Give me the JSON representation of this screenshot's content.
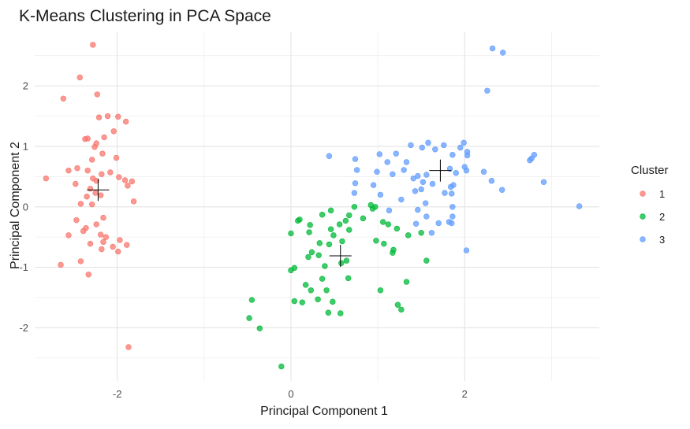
{
  "chart_data": {
    "type": "scatter",
    "title": "K-Means Clustering in PCA Space",
    "xlabel": "Principal Component 1",
    "ylabel": "Principal Component 2",
    "xlim": [
      -2.95,
      3.55
    ],
    "ylim": [
      -2.88,
      2.9
    ],
    "x_ticks": [
      -2,
      0,
      2
    ],
    "y_ticks": [
      -2,
      -1,
      0,
      1,
      2
    ],
    "grid": true,
    "legend": {
      "title": "Cluster",
      "position": "right"
    },
    "series": [
      {
        "name": "1",
        "color": "#F8766D",
        "points": [
          [
            -2.28,
            2.68
          ],
          [
            -2.43,
            2.14
          ],
          [
            -2.23,
            1.86
          ],
          [
            -2.62,
            1.79
          ],
          [
            -2.11,
            1.5
          ],
          [
            -1.99,
            1.49
          ],
          [
            -2.21,
            1.48
          ],
          [
            -1.9,
            1.41
          ],
          [
            -2.04,
            1.25
          ],
          [
            -2.15,
            1.15
          ],
          [
            -2.34,
            1.13
          ],
          [
            -2.37,
            1.12
          ],
          [
            -2.24,
            1.05
          ],
          [
            -2.26,
            0.99
          ],
          [
            -2.17,
            0.88
          ],
          [
            -2.01,
            0.81
          ],
          [
            -2.29,
            0.78
          ],
          [
            -2.46,
            0.64
          ],
          [
            -2.34,
            0.6
          ],
          [
            -2.56,
            0.6
          ],
          [
            -2.08,
            0.57
          ],
          [
            -2.18,
            0.54
          ],
          [
            -2.28,
            0.47
          ],
          [
            -2.24,
            0.43
          ],
          [
            -2.82,
            0.47
          ],
          [
            -1.98,
            0.49
          ],
          [
            -1.91,
            0.44
          ],
          [
            -1.83,
            0.42
          ],
          [
            -2.48,
            0.38
          ],
          [
            -1.88,
            0.35
          ],
          [
            -2.31,
            0.3
          ],
          [
            -2.25,
            0.23
          ],
          [
            -2.19,
            0.19
          ],
          [
            -2.35,
            0.17
          ],
          [
            -1.81,
            0.09
          ],
          [
            -2.42,
            0.05
          ],
          [
            -2.29,
            0.04
          ],
          [
            -2.16,
            -0.18
          ],
          [
            -2.47,
            -0.22
          ],
          [
            -2.24,
            -0.29
          ],
          [
            -2.36,
            -0.35
          ],
          [
            -2.39,
            -0.4
          ],
          [
            -2.56,
            -0.47
          ],
          [
            -2.19,
            -0.46
          ],
          [
            -2.13,
            -0.5
          ],
          [
            -2.16,
            -0.58
          ],
          [
            -1.97,
            -0.55
          ],
          [
            -2.31,
            -0.61
          ],
          [
            -2.05,
            -0.66
          ],
          [
            -1.89,
            -0.63
          ],
          [
            -2.18,
            -0.7
          ],
          [
            -1.99,
            -0.74
          ],
          [
            -2.42,
            -0.9
          ],
          [
            -2.65,
            -0.96
          ],
          [
            -2.33,
            -1.12
          ],
          [
            -1.87,
            -2.32
          ]
        ]
      },
      {
        "name": "2",
        "color": "#00BA38",
        "points": [
          [
            0.73,
            0.0
          ],
          [
            0.92,
            0.03
          ],
          [
            0.94,
            -0.03
          ],
          [
            0.97,
            0.0
          ],
          [
            0.46,
            -0.06
          ],
          [
            0.67,
            -0.14
          ],
          [
            0.83,
            -0.19
          ],
          [
            0.63,
            -0.23
          ],
          [
            0.56,
            -0.29
          ],
          [
            0.36,
            -0.13
          ],
          [
            0.46,
            -0.37
          ],
          [
            0.1,
            -0.21
          ],
          [
            0.08,
            -0.23
          ],
          [
            0.22,
            -0.3
          ],
          [
            0.21,
            -0.42
          ],
          [
            0.0,
            -0.44
          ],
          [
            1.06,
            -0.25
          ],
          [
            1.12,
            -0.29
          ],
          [
            1.22,
            -0.36
          ],
          [
            1.35,
            -0.47
          ],
          [
            1.5,
            -0.43
          ],
          [
            0.98,
            -0.56
          ],
          [
            1.07,
            -0.61
          ],
          [
            1.18,
            -0.71
          ],
          [
            1.17,
            -0.76
          ],
          [
            1.56,
            -0.89
          ],
          [
            0.67,
            -0.38
          ],
          [
            0.49,
            -0.47
          ],
          [
            0.59,
            -0.57
          ],
          [
            0.44,
            -0.62
          ],
          [
            0.33,
            -0.6
          ],
          [
            0.24,
            -0.75
          ],
          [
            0.32,
            -0.8
          ],
          [
            0.2,
            -0.83
          ],
          [
            0.58,
            -0.93
          ],
          [
            0.64,
            -0.89
          ],
          [
            0.39,
            -0.98
          ],
          [
            0.0,
            -1.05
          ],
          [
            0.04,
            -1.01
          ],
          [
            0.66,
            -1.18
          ],
          [
            0.36,
            -1.19
          ],
          [
            0.17,
            -1.29
          ],
          [
            0.23,
            -1.38
          ],
          [
            0.41,
            -1.38
          ],
          [
            1.33,
            -1.24
          ],
          [
            1.03,
            -1.38
          ],
          [
            0.13,
            -1.58
          ],
          [
            0.04,
            -1.56
          ],
          [
            0.31,
            -1.53
          ],
          [
            0.48,
            -1.57
          ],
          [
            1.23,
            -1.62
          ],
          [
            1.27,
            -1.7
          ],
          [
            0.43,
            -1.75
          ],
          [
            0.57,
            -1.76
          ],
          [
            -0.45,
            -1.54
          ],
          [
            -0.48,
            -1.84
          ],
          [
            -0.36,
            -2.01
          ],
          [
            -0.11,
            -2.64
          ]
        ]
      },
      {
        "name": "3",
        "color": "#619CFF",
        "points": [
          [
            2.32,
            2.62
          ],
          [
            2.44,
            2.55
          ],
          [
            2.26,
            1.92
          ],
          [
            1.58,
            1.06
          ],
          [
            1.76,
            1.02
          ],
          [
            1.99,
            1.06
          ],
          [
            1.95,
            0.98
          ],
          [
            1.38,
            1.02
          ],
          [
            1.02,
            0.87
          ],
          [
            1.21,
            0.88
          ],
          [
            1.51,
            0.98
          ],
          [
            1.66,
            0.95
          ],
          [
            1.86,
            0.86
          ],
          [
            2.03,
            0.91
          ],
          [
            2.03,
            0.85
          ],
          [
            2.8,
            0.86
          ],
          [
            2.77,
            0.8
          ],
          [
            2.75,
            0.77
          ],
          [
            0.44,
            0.84
          ],
          [
            0.74,
            0.79
          ],
          [
            1.11,
            0.74
          ],
          [
            1.33,
            0.74
          ],
          [
            0.76,
            0.61
          ],
          [
            0.99,
            0.58
          ],
          [
            1.17,
            0.54
          ],
          [
            1.56,
            0.53
          ],
          [
            1.46,
            0.51
          ],
          [
            2.0,
            0.66
          ],
          [
            1.83,
            0.63
          ],
          [
            1.9,
            0.56
          ],
          [
            2.02,
            0.6
          ],
          [
            2.22,
            0.58
          ],
          [
            1.3,
            0.61
          ],
          [
            1.41,
            0.47
          ],
          [
            1.52,
            0.41
          ],
          [
            1.63,
            0.38
          ],
          [
            1.84,
            0.33
          ],
          [
            1.87,
            0.36
          ],
          [
            2.31,
            0.43
          ],
          [
            2.91,
            0.41
          ],
          [
            0.74,
            0.39
          ],
          [
            0.95,
            0.36
          ],
          [
            1.43,
            0.26
          ],
          [
            1.5,
            0.29
          ],
          [
            1.77,
            0.23
          ],
          [
            2.43,
            0.28
          ],
          [
            0.73,
            0.23
          ],
          [
            1.85,
            0.22
          ],
          [
            1.03,
            0.2
          ],
          [
            1.27,
            0.12
          ],
          [
            1.55,
            0.06
          ],
          [
            1.86,
            0.0
          ],
          [
            3.32,
            0.01
          ],
          [
            1.13,
            -0.06
          ],
          [
            1.46,
            -0.05
          ],
          [
            1.56,
            -0.16
          ],
          [
            1.86,
            -0.16
          ],
          [
            1.44,
            -0.28
          ],
          [
            1.7,
            -0.27
          ],
          [
            1.82,
            -0.25
          ],
          [
            1.85,
            -0.27
          ],
          [
            1.62,
            -0.43
          ],
          [
            2.02,
            -0.72
          ]
        ]
      }
    ],
    "centroids": [
      {
        "name": "1",
        "x": -2.22,
        "y": 0.28
      },
      {
        "name": "2",
        "x": 0.57,
        "y": -0.81
      },
      {
        "name": "3",
        "x": 1.72,
        "y": 0.6
      }
    ]
  }
}
